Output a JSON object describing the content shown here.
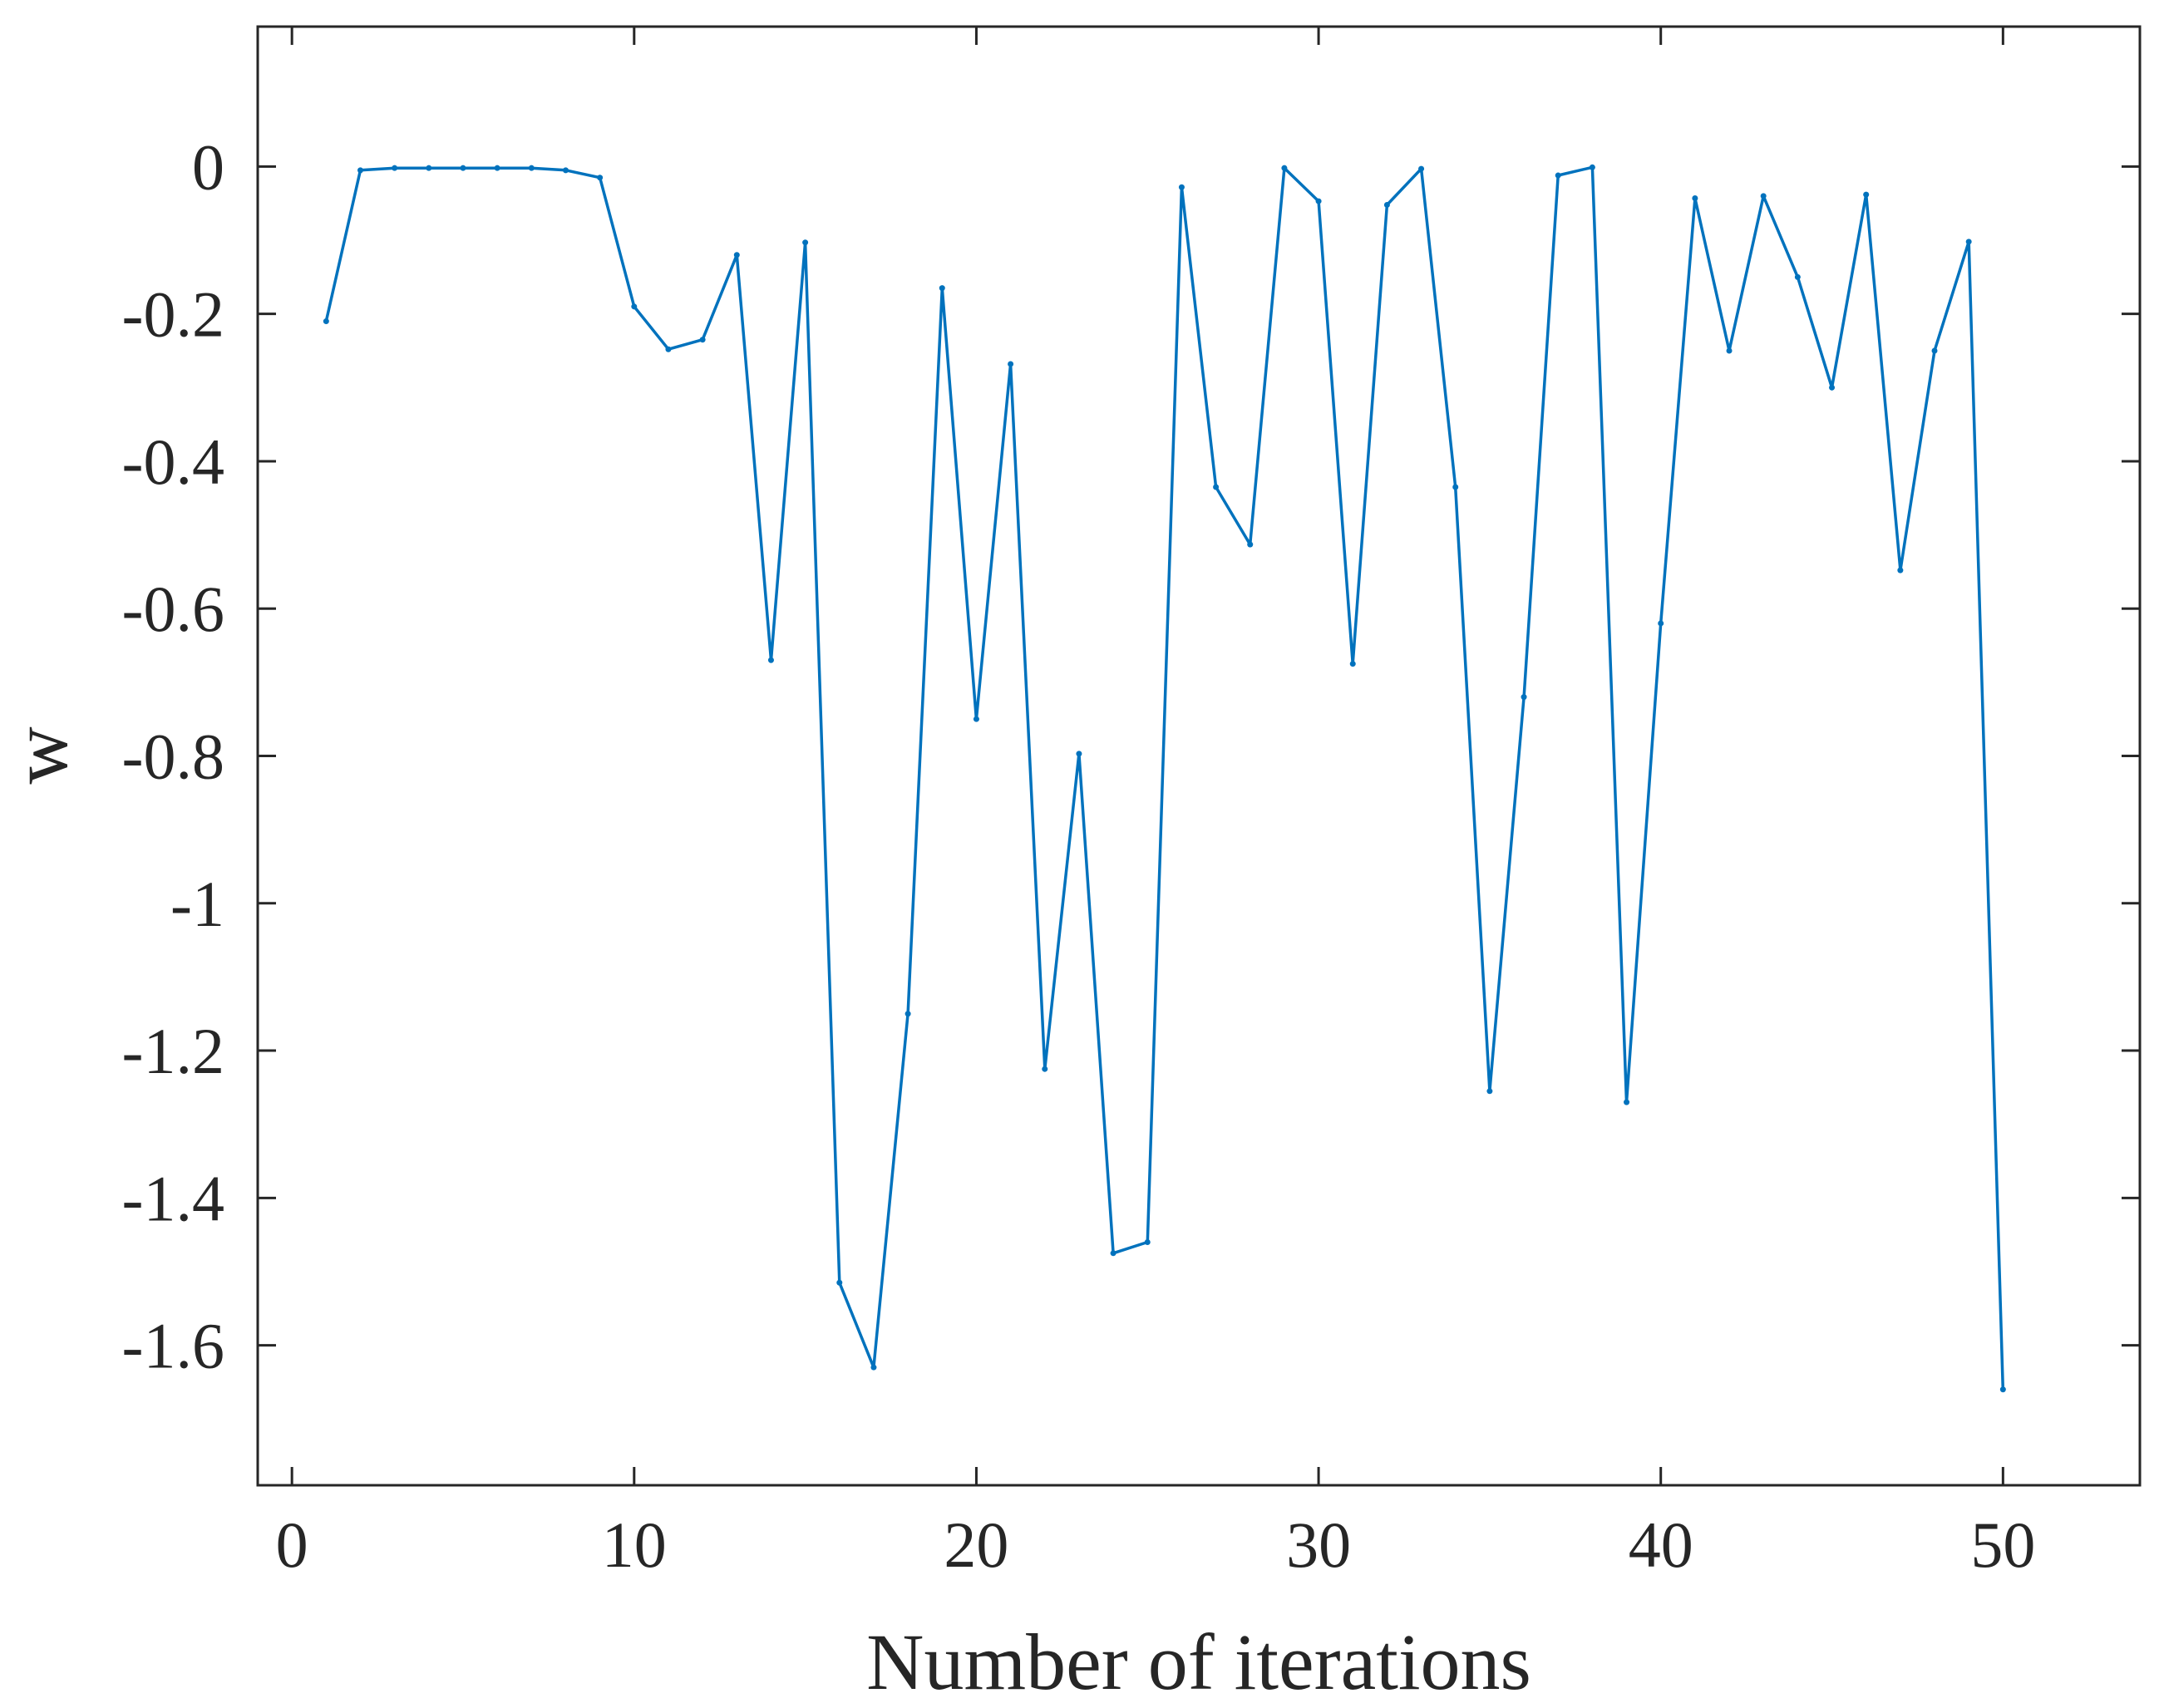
{
  "chart_data": {
    "type": "line",
    "title": "",
    "xlabel": "Number of iterations",
    "ylabel": "w",
    "xlim": [
      -1,
      54
    ],
    "ylim": [
      -1.79,
      0.19
    ],
    "grid": false,
    "legend": "none",
    "x_ticks": [
      0,
      10,
      20,
      30,
      40,
      50
    ],
    "x_tick_labels": [
      "0",
      "10",
      "20",
      "30",
      "40",
      "50"
    ],
    "y_ticks": [
      0,
      -0.2,
      -0.4,
      -0.6,
      -0.8,
      -1,
      -1.2,
      -1.4,
      -1.6
    ],
    "y_tick_labels": [
      "0",
      "-0.2",
      "-0.4",
      "-0.6",
      "-0.8",
      "-1",
      "-1.2",
      "-1.4",
      "-1.6"
    ],
    "series": [
      {
        "color": "#0072bd",
        "x": [
          1,
          2,
          3,
          4,
          5,
          6,
          7,
          8,
          9,
          10,
          11,
          12,
          13,
          14,
          15,
          16,
          17,
          18,
          19,
          20,
          21,
          22,
          23,
          24,
          25,
          26,
          27,
          28,
          29,
          30,
          31,
          32,
          33,
          34,
          35,
          36,
          37,
          38,
          39,
          40,
          41,
          42,
          43,
          44,
          45,
          46,
          47,
          48,
          49,
          50
        ],
        "values": [
          -0.21,
          -0.005,
          -0.002,
          -0.002,
          -0.002,
          -0.002,
          -0.002,
          -0.005,
          -0.015,
          -0.19,
          -0.248,
          -0.235,
          -0.12,
          -0.67,
          -0.103,
          -1.515,
          -1.63,
          -1.15,
          -0.165,
          -0.75,
          -0.268,
          -1.225,
          -0.797,
          -1.475,
          -1.46,
          -0.028,
          -0.435,
          -0.513,
          -0.002,
          -0.047,
          -0.675,
          -0.052,
          -0.003,
          -0.435,
          -1.255,
          -0.72,
          -0.012,
          -0.001,
          -1.27,
          -0.62,
          -0.043,
          -0.25,
          -0.04,
          -0.15,
          -0.3,
          -0.038,
          -0.548,
          -0.25,
          -0.102,
          -1.66
        ]
      }
    ]
  }
}
